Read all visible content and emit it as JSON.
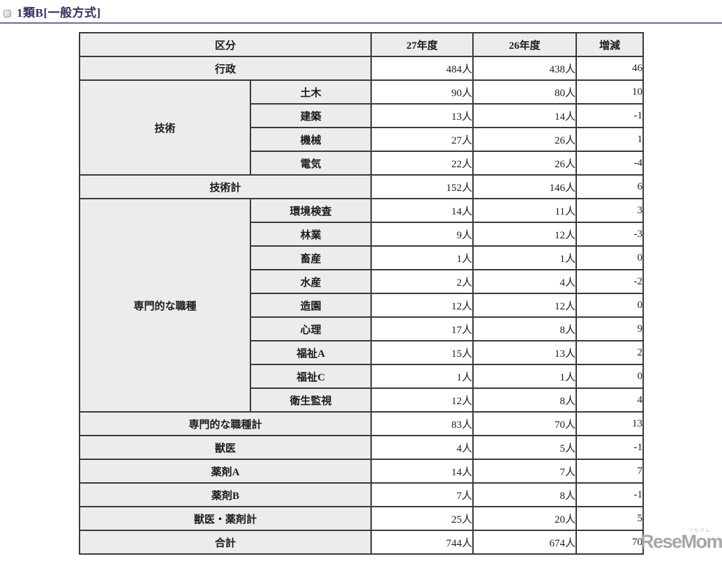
{
  "page": {
    "title": "1類B[一般方式]"
  },
  "watermark": {
    "text": "ReseMom.",
    "ruby": "リセマム"
  },
  "colors": {
    "title_navy": "#333366",
    "rule_navy": "#6b6b99",
    "table_border": "#3a3a3a",
    "label_cell_bg": "#ececec",
    "value_cell_bg": "#ffffff",
    "watermark_gray": "#a6a6a6"
  },
  "table": {
    "headers": [
      "区分",
      "27年度",
      "26年度",
      "増減"
    ],
    "rows": [
      {
        "label": "行政",
        "span2": true,
        "v27": "484人",
        "v26": "438人",
        "diff": "46"
      },
      {
        "group": "技術",
        "group_span": 4,
        "label": "土木",
        "v27": "90人",
        "v26": "80人",
        "diff": "10"
      },
      {
        "label": "建築",
        "v27": "13人",
        "v26": "14人",
        "diff": "-1"
      },
      {
        "label": "機械",
        "v27": "27人",
        "v26": "26人",
        "diff": "1"
      },
      {
        "label": "電気",
        "v27": "22人",
        "v26": "26人",
        "diff": "-4"
      },
      {
        "label": "技術計",
        "span2": true,
        "v27": "152人",
        "v26": "146人",
        "diff": "6"
      },
      {
        "group": "専門的な職種",
        "group_span": 9,
        "label": "環境検査",
        "v27": "14人",
        "v26": "11人",
        "diff": "3"
      },
      {
        "label": "林業",
        "v27": "9人",
        "v26": "12人",
        "diff": "-3"
      },
      {
        "label": "畜産",
        "v27": "1人",
        "v26": "1人",
        "diff": "0"
      },
      {
        "label": "水産",
        "v27": "2人",
        "v26": "4人",
        "diff": "-2"
      },
      {
        "label": "造園",
        "v27": "12人",
        "v26": "12人",
        "diff": "0"
      },
      {
        "label": "心理",
        "v27": "17人",
        "v26": "8人",
        "diff": "9"
      },
      {
        "label": "福祉A",
        "v27": "15人",
        "v26": "13人",
        "diff": "2"
      },
      {
        "label": "福祉C",
        "v27": "1人",
        "v26": "1人",
        "diff": "0"
      },
      {
        "label": "衛生監視",
        "v27": "12人",
        "v26": "8人",
        "diff": "4"
      },
      {
        "label": "専門的な職種計",
        "span2": true,
        "v27": "83人",
        "v26": "70人",
        "diff": "13"
      },
      {
        "label": "獣医",
        "span2": true,
        "v27": "4人",
        "v26": "5人",
        "diff": "-1"
      },
      {
        "label": "薬剤A",
        "span2": true,
        "v27": "14人",
        "v26": "7人",
        "diff": "7"
      },
      {
        "label": "薬剤B",
        "span2": true,
        "v27": "7人",
        "v26": "8人",
        "diff": "-1"
      },
      {
        "label": "獣医・薬剤計",
        "span2": true,
        "v27": "25人",
        "v26": "20人",
        "diff": "5"
      },
      {
        "label": "合計",
        "span2": true,
        "v27": "744人",
        "v26": "674人",
        "diff": "70"
      }
    ]
  }
}
